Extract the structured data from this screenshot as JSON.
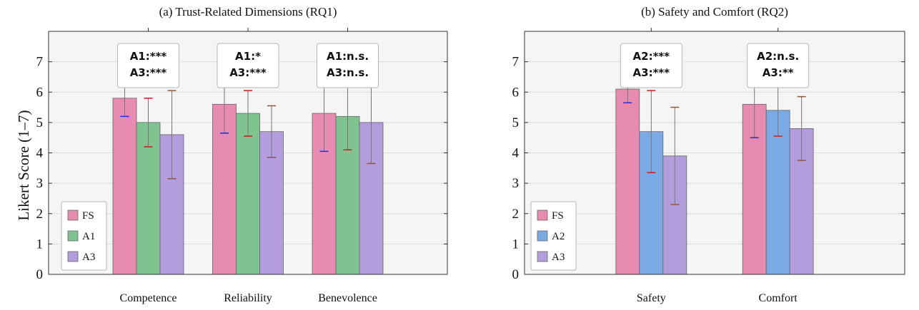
{
  "ylabel": "Likert Score (1–7)",
  "chart_data": [
    {
      "type": "bar",
      "title": "(a) Trust-Related Dimensions (RQ1)",
      "categories": [
        "Competence",
        "Reliability",
        "Benevolence"
      ],
      "ylim": [
        0,
        8
      ],
      "yticks": [
        0,
        1,
        2,
        3,
        4,
        5,
        6,
        7
      ],
      "grid": true,
      "legend_position": "bottom-left",
      "series": [
        {
          "name": "FS",
          "color": "#e78bb0",
          "error_color": "#1f2fd6",
          "values": [
            5.8,
            5.6,
            5.3
          ],
          "err_low": [
            5.2,
            4.65,
            4.05
          ],
          "err_high": [
            6.4,
            6.55,
            6.55
          ]
        },
        {
          "name": "A1",
          "color": "#7fc490",
          "error_color": "#c21f1f",
          "values": [
            5.0,
            5.3,
            5.2
          ],
          "err_low": [
            4.2,
            4.55,
            4.1
          ],
          "err_high": [
            5.8,
            6.05,
            6.3
          ]
        },
        {
          "name": "A3",
          "color": "#b49ddc",
          "error_color": "#8b5a3c",
          "values": [
            4.6,
            4.7,
            5.0
          ],
          "err_low": [
            3.15,
            3.85,
            3.65
          ],
          "err_high": [
            6.05,
            5.55,
            6.35
          ]
        }
      ],
      "annotations": [
        {
          "lines": [
            "A1:***",
            "A3:***"
          ]
        },
        {
          "lines": [
            "A1:*",
            "A3:***"
          ]
        },
        {
          "lines": [
            "A1:n.s.",
            "A3:n.s."
          ]
        }
      ]
    },
    {
      "type": "bar",
      "title": "(b) Safety and Comfort (RQ2)",
      "categories": [
        "Safety",
        "Comfort"
      ],
      "ylim": [
        0,
        8
      ],
      "yticks": [
        0,
        1,
        2,
        3,
        4,
        5,
        6,
        7
      ],
      "grid": true,
      "legend_position": "bottom-left",
      "series": [
        {
          "name": "FS",
          "color": "#e78bb0",
          "error_color": "#1f2fd6",
          "values": [
            6.1,
            5.6
          ],
          "err_low": [
            5.65,
            4.5
          ],
          "err_high": [
            6.55,
            6.7
          ]
        },
        {
          "name": "A2",
          "color": "#7aa9e3",
          "error_color": "#c21f1f",
          "values": [
            4.7,
            5.4
          ],
          "err_low": [
            3.35,
            4.55
          ],
          "err_high": [
            6.05,
            6.25
          ]
        },
        {
          "name": "A3",
          "color": "#b49ddc",
          "error_color": "#8b5a3c",
          "values": [
            3.9,
            4.8
          ],
          "err_low": [
            2.3,
            3.75
          ],
          "err_high": [
            5.5,
            5.85
          ]
        }
      ],
      "annotations": [
        {
          "lines": [
            "A2:***",
            "A3:***"
          ]
        },
        {
          "lines": [
            "A2:n.s.",
            "A3:**"
          ]
        }
      ]
    }
  ]
}
